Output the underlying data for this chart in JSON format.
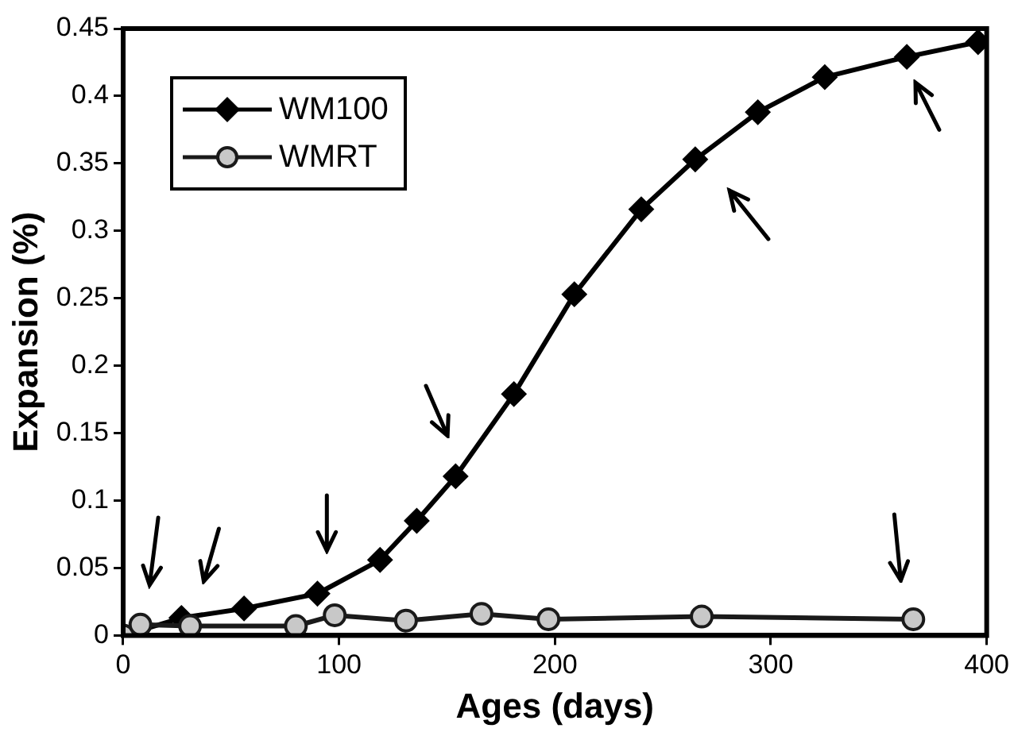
{
  "chart_data": {
    "type": "line",
    "xlabel": "Ages (days)",
    "ylabel": "Expansion (%)",
    "xlim": [
      0,
      400
    ],
    "xticks": [
      0,
      100,
      200,
      300,
      400
    ],
    "ylim": [
      0,
      0.45
    ],
    "yticks": [
      0,
      0.05,
      0.1,
      0.15,
      0.2,
      0.25,
      0.3,
      0.35,
      0.4,
      0.45
    ],
    "grid": false,
    "legend": "top left",
    "line_style": "solid",
    "series": [
      {
        "name": "WM100",
        "color": "#000000",
        "marker": "diamond",
        "x": [
          0,
          27,
          56,
          90,
          119,
          136,
          154,
          181,
          209,
          240,
          265,
          294,
          325,
          363,
          396
        ],
        "values": [
          0,
          0.013,
          0.02,
          0.031,
          0.056,
          0.085,
          0.118,
          0.179,
          0.253,
          0.316,
          0.353,
          0.388,
          0.414,
          0.429,
          0.44
        ]
      },
      {
        "name": "WMRT",
        "color": "#1a1a1a",
        "marker": "circle",
        "x": [
          0,
          8,
          31,
          80,
          98,
          131,
          166,
          197,
          268,
          366
        ],
        "values": [
          0,
          0.008,
          0.007,
          0.007,
          0.015,
          0.011,
          0.016,
          0.012,
          0.014,
          0.012
        ]
      }
    ]
  }
}
